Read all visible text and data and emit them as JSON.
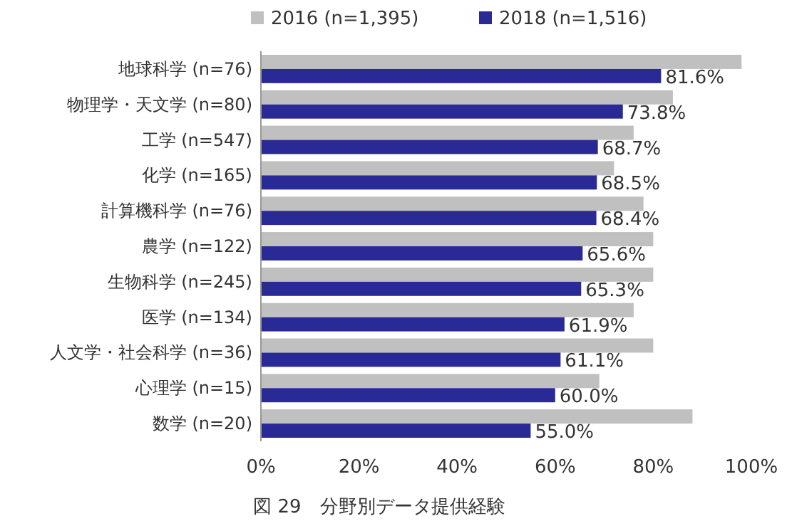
{
  "chart_data": {
    "type": "bar",
    "orientation": "horizontal",
    "title": "図 29　分野別データ提供経験",
    "categories": [
      "地球科学 (n=76)",
      "物理学・天文学 (n=80)",
      "工学 (n=547)",
      "化学 (n=165)",
      "計算機科学 (n=76)",
      "農学 (n=122)",
      "生物科学 (n=245)",
      "医学 (n=134)",
      "人文学・社会科学 (n=36)",
      "心理学 (n=15)",
      "数学 (n=20)"
    ],
    "series": [
      {
        "name": "2016 (n=1,395)",
        "color": "#c0c0c0",
        "values": [
          98,
          84,
          76,
          72,
          78,
          80,
          80,
          76,
          80,
          69,
          88
        ]
      },
      {
        "name": "2018 (n=1,516)",
        "color": "#2a2a96",
        "values": [
          81.6,
          73.8,
          68.7,
          68.5,
          68.4,
          65.6,
          65.3,
          61.9,
          61.1,
          60.0,
          55.0
        ],
        "value_labels": [
          "81.6%",
          "73.8%",
          "68.7%",
          "68.5%",
          "68.4%",
          "65.6%",
          "65.3%",
          "61.9%",
          "61.1%",
          "60.0%",
          "55.0%"
        ]
      }
    ],
    "xlim": [
      0,
      100
    ],
    "xticks": [
      {
        "value": 0,
        "label": "0%"
      },
      {
        "value": 20,
        "label": "20%"
      },
      {
        "value": 40,
        "label": "40%"
      },
      {
        "value": 60,
        "label": "60%"
      },
      {
        "value": 80,
        "label": "80%"
      },
      {
        "value": 100,
        "label": "100%"
      }
    ],
    "legend": "top",
    "grid": false
  }
}
